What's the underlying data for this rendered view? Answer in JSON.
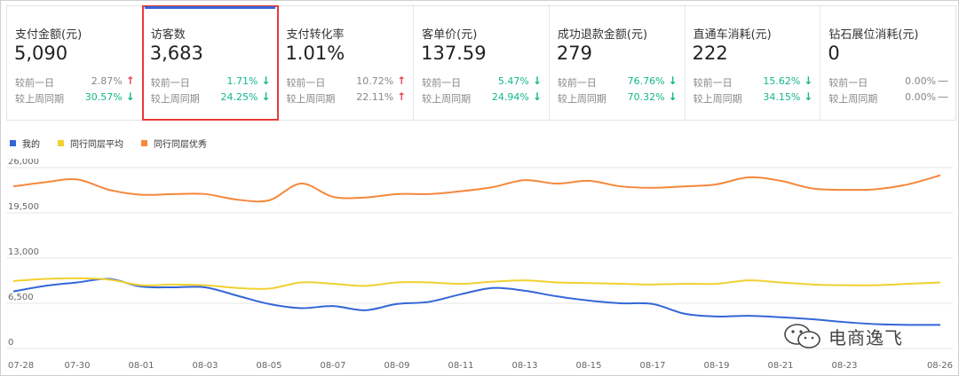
{
  "metrics": [
    {
      "title": "支付金额(元)",
      "value": "5,090",
      "day_label": "较前一日",
      "day_pct": "2.87%",
      "day_dir": "up",
      "week_label": "较上周同期",
      "week_pct": "30.57%",
      "week_dir": "down",
      "highlight": false
    },
    {
      "title": "访客数",
      "value": "3,683",
      "day_label": "较前一日",
      "day_pct": "1.71%",
      "day_dir": "down",
      "week_label": "较上周同期",
      "week_pct": "24.25%",
      "week_dir": "down",
      "highlight": true
    },
    {
      "title": "支付转化率",
      "value": "1.01%",
      "day_label": "较前一日",
      "day_pct": "10.72%",
      "day_dir": "up",
      "week_label": "较上周同期",
      "week_pct": "22.11%",
      "week_dir": "up",
      "highlight": false
    },
    {
      "title": "客单价(元)",
      "value": "137.59",
      "day_label": "较前一日",
      "day_pct": "5.47%",
      "day_dir": "down",
      "week_label": "较上周同期",
      "week_pct": "24.94%",
      "week_dir": "down",
      "highlight": false
    },
    {
      "title": "成功退款金额(元)",
      "value": "279",
      "day_label": "较前一日",
      "day_pct": "76.76%",
      "day_dir": "down",
      "week_label": "较上周同期",
      "week_pct": "70.32%",
      "week_dir": "down",
      "highlight": false
    },
    {
      "title": "直通车消耗(元)",
      "value": "222",
      "day_label": "较前一日",
      "day_pct": "15.62%",
      "day_dir": "down",
      "week_label": "较上周同期",
      "week_pct": "34.15%",
      "week_dir": "down",
      "highlight": false
    },
    {
      "title": "钻石展位消耗(元)",
      "value": "0",
      "day_label": "较前一日",
      "day_pct": "0.00%",
      "day_dir": "flat",
      "week_label": "较上周同期",
      "week_pct": "0.00%",
      "week_dir": "flat",
      "highlight": false
    }
  ],
  "chart_data": {
    "type": "line",
    "x": [
      "07-28",
      "07-29",
      "07-30",
      "07-31",
      "08-01",
      "08-02",
      "08-03",
      "08-04",
      "08-05",
      "08-06",
      "08-07",
      "08-08",
      "08-09",
      "08-10",
      "08-11",
      "08-12",
      "08-13",
      "08-14",
      "08-15",
      "08-16",
      "08-17",
      "08-18",
      "08-19",
      "08-20",
      "08-21",
      "08-22",
      "08-23",
      "08-24",
      "08-25",
      "08-26"
    ],
    "x_tick_labels": [
      "07-28",
      "07-30",
      "08-01",
      "08-03",
      "08-05",
      "08-07",
      "08-09",
      "08-11",
      "08-13",
      "08-15",
      "08-17",
      "08-19",
      "08-21",
      "08-23",
      "08-26"
    ],
    "y_ticks": [
      0,
      6500,
      13000,
      19500,
      26000
    ],
    "y_tick_labels": [
      "0",
      "6,500",
      "13,000",
      "19,500",
      "26,000"
    ],
    "ylim": [
      0,
      26000
    ],
    "grid": "horizontal",
    "legend_position": "top-left",
    "series": [
      {
        "name": "我的",
        "color": "#3366d6",
        "values": [
          8200,
          9000,
          9500,
          10000,
          8900,
          8800,
          8800,
          7600,
          6400,
          5800,
          6100,
          5500,
          6400,
          6700,
          7800,
          8700,
          8300,
          7500,
          6900,
          6500,
          6400,
          5000,
          4600,
          4700,
          4500,
          4200,
          3800,
          3500,
          3400,
          3400
        ]
      },
      {
        "name": "同行同层平均",
        "color": "#f0d132",
        "values": [
          9700,
          10000,
          10100,
          9900,
          9100,
          9200,
          9100,
          8700,
          8600,
          9500,
          9300,
          9000,
          9500,
          9500,
          9300,
          9600,
          9800,
          9500,
          9400,
          9300,
          9200,
          9300,
          9300,
          9800,
          9500,
          9200,
          9100,
          9100,
          9300,
          9500
        ]
      },
      {
        "name": "同行同层优秀",
        "color": "#f5883c",
        "values": [
          23300,
          23900,
          24300,
          22800,
          22100,
          22200,
          22200,
          21400,
          21300,
          23700,
          21800,
          21700,
          22200,
          22200,
          22600,
          23200,
          24200,
          23700,
          24100,
          23300,
          23100,
          23300,
          23600,
          24600,
          24100,
          23000,
          22800,
          22900,
          23600,
          24900
        ]
      }
    ]
  },
  "watermark": {
    "text": "电商逸飞",
    "icon": "wechat-icon"
  }
}
